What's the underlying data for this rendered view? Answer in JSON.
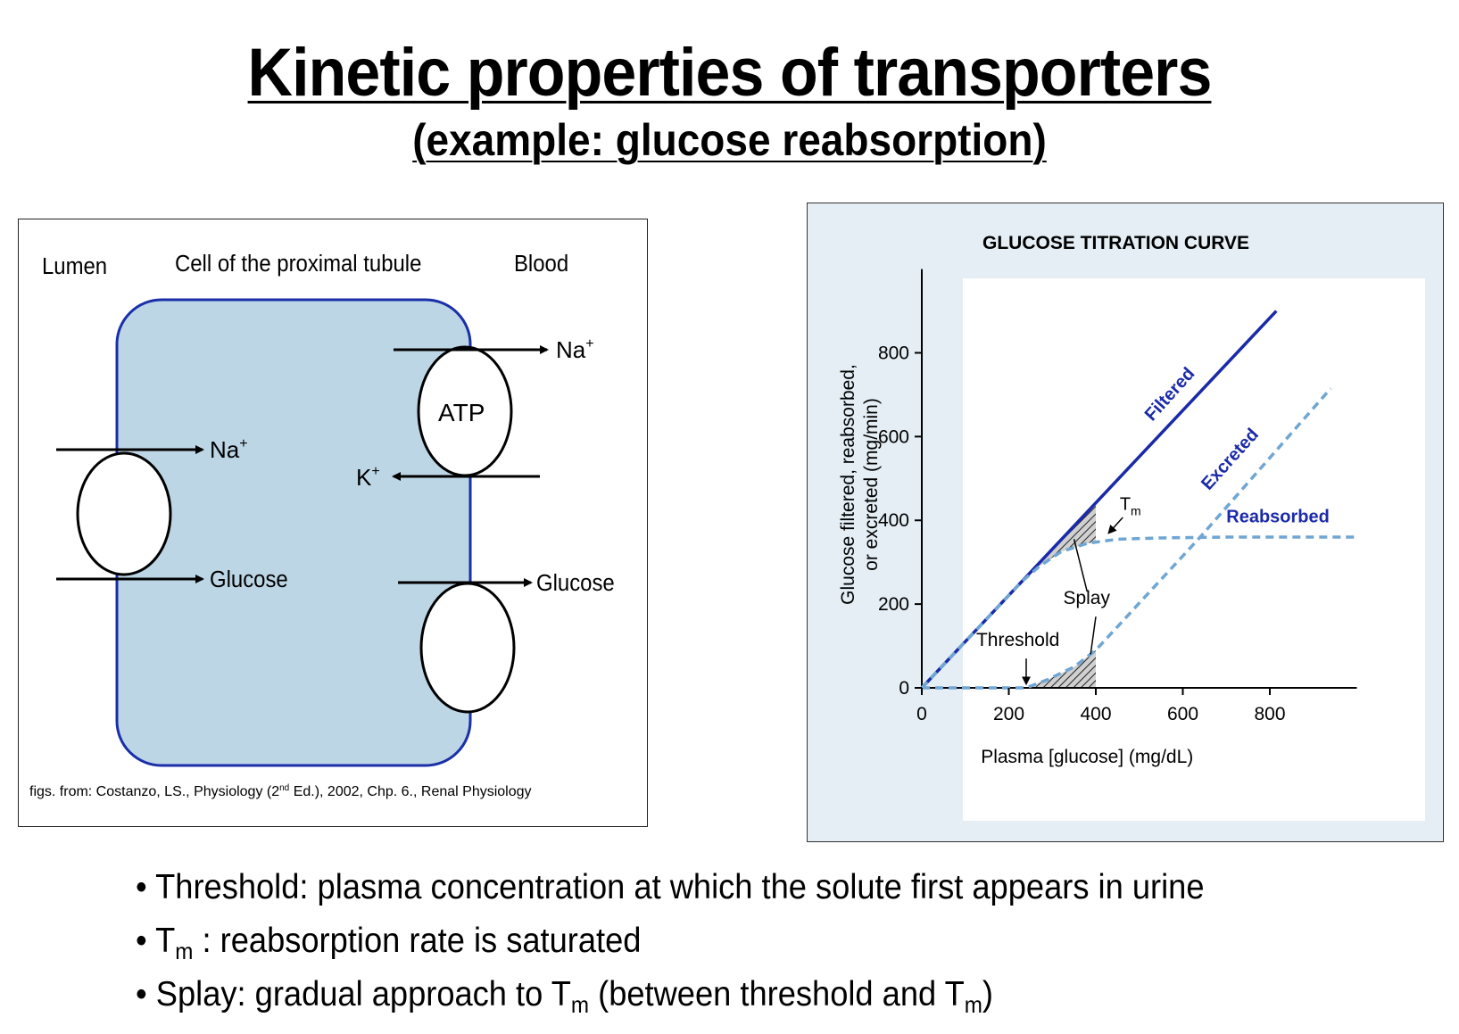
{
  "title": "Kinetic properties of transporters",
  "subtitle": "(example: glucose reabsorption)",
  "cell_diagram": {
    "lumen_label": "Lumen",
    "cell_label": "Cell of the proximal tubule",
    "blood_label": "Blood",
    "na_label": "Na",
    "plus": "+",
    "k_label": "K",
    "atp_label": "ATP",
    "glucose_label": "Glucose",
    "citation_pre": "figs. from: Costanzo, LS., Physiology (2",
    "citation_sup": "nd",
    "citation_post": " Ed.), 2002, Chp. 6., Renal Physiology",
    "colors": {
      "cell_fill": "#bdd6e6",
      "cell_border": "#1a2fa8"
    }
  },
  "chart_data": {
    "type": "line",
    "title": "GLUCOSE TITRATION CURVE",
    "xlabel": "Plasma [glucose] (mg/dL)",
    "ylabel_line1": "Glucose filtered, reabsorbed,",
    "ylabel_line2": "or excreted (mg/min)",
    "xlim": [
      0,
      1000
    ],
    "ylim": [
      0,
      1000
    ],
    "x_ticks": [
      0,
      200,
      400,
      600,
      800
    ],
    "y_ticks": [
      0,
      200,
      400,
      600,
      800
    ],
    "series": [
      {
        "name": "Filtered",
        "style": "solid",
        "color": "#1a2aa8",
        "points": [
          [
            0,
            0
          ],
          [
            815,
            900
          ]
        ]
      },
      {
        "name": "Reabsorbed",
        "style": "dashed",
        "color": "#6fa6d4",
        "points": [
          [
            0,
            0
          ],
          [
            230,
            254
          ],
          [
            270,
            290
          ],
          [
            320,
            325
          ],
          [
            380,
            345
          ],
          [
            450,
            355
          ],
          [
            550,
            358
          ],
          [
            700,
            360
          ],
          [
            1000,
            360
          ]
        ]
      },
      {
        "name": "Excreted",
        "style": "dashed",
        "color": "#6fa6d4",
        "points": [
          [
            0,
            0
          ],
          [
            240,
            0
          ],
          [
            290,
            20
          ],
          [
            350,
            50
          ],
          [
            400,
            90
          ],
          [
            640,
            360
          ],
          [
            940,
            715
          ]
        ]
      }
    ],
    "annotations": {
      "tm": "T",
      "tm_sub": "m",
      "splay": "Splay",
      "threshold": "Threshold"
    },
    "colors": {
      "panel_bg": "#e4eef4",
      "plot_bg": "#ffffff"
    }
  },
  "bullets": {
    "b1": "• Threshold: plasma concentration at which the solute first appears in urine",
    "b2_pre": "• T",
    "b2_sub": "m",
    "b2_post": " : reabsorption rate is saturated",
    "b3_pre": "• Splay: gradual approach to T",
    "b3_sub": "m",
    "b3_mid": " (between threshold and T",
    "b3_sub2": "m",
    "b3_post": ")"
  }
}
